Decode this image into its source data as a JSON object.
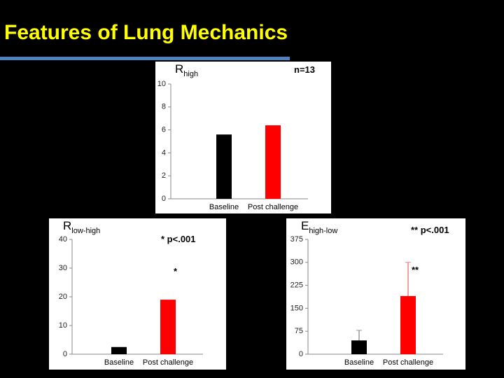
{
  "slide": {
    "title": "Features of Lung Mechanics"
  },
  "chart_data": [
    {
      "type": "bar",
      "title": "R",
      "title_subscript": "high",
      "categories": [
        "Baseline",
        "Post challenge"
      ],
      "values": [
        5.6,
        6.4
      ],
      "colors": [
        "#000000",
        "#ff0000"
      ],
      "ylim": [
        0,
        10
      ],
      "yticks": [
        0,
        2,
        4,
        6,
        8,
        10
      ],
      "annotations": [
        "n=13"
      ]
    },
    {
      "type": "bar",
      "title": "R",
      "title_subscript": "low-high",
      "categories": [
        "Baseline",
        "Post challenge"
      ],
      "values": [
        2.5,
        19
      ],
      "colors": [
        "#000000",
        "#ff0000"
      ],
      "ylim": [
        0,
        40
      ],
      "yticks": [
        0,
        10,
        20,
        30,
        40
      ],
      "annotations": [
        "*  p<.001",
        "*"
      ]
    },
    {
      "type": "bar",
      "title": "E",
      "title_subscript": "high-low",
      "categories": [
        "Baseline",
        "Post challenge"
      ],
      "values": [
        45,
        190
      ],
      "errors": [
        33,
        110
      ],
      "colors": [
        "#000000",
        "#ff0000"
      ],
      "ylim": [
        0,
        375
      ],
      "yticks": [
        0,
        75,
        150,
        225,
        300,
        375
      ],
      "annotations": [
        "** p<.001",
        "**"
      ]
    }
  ]
}
